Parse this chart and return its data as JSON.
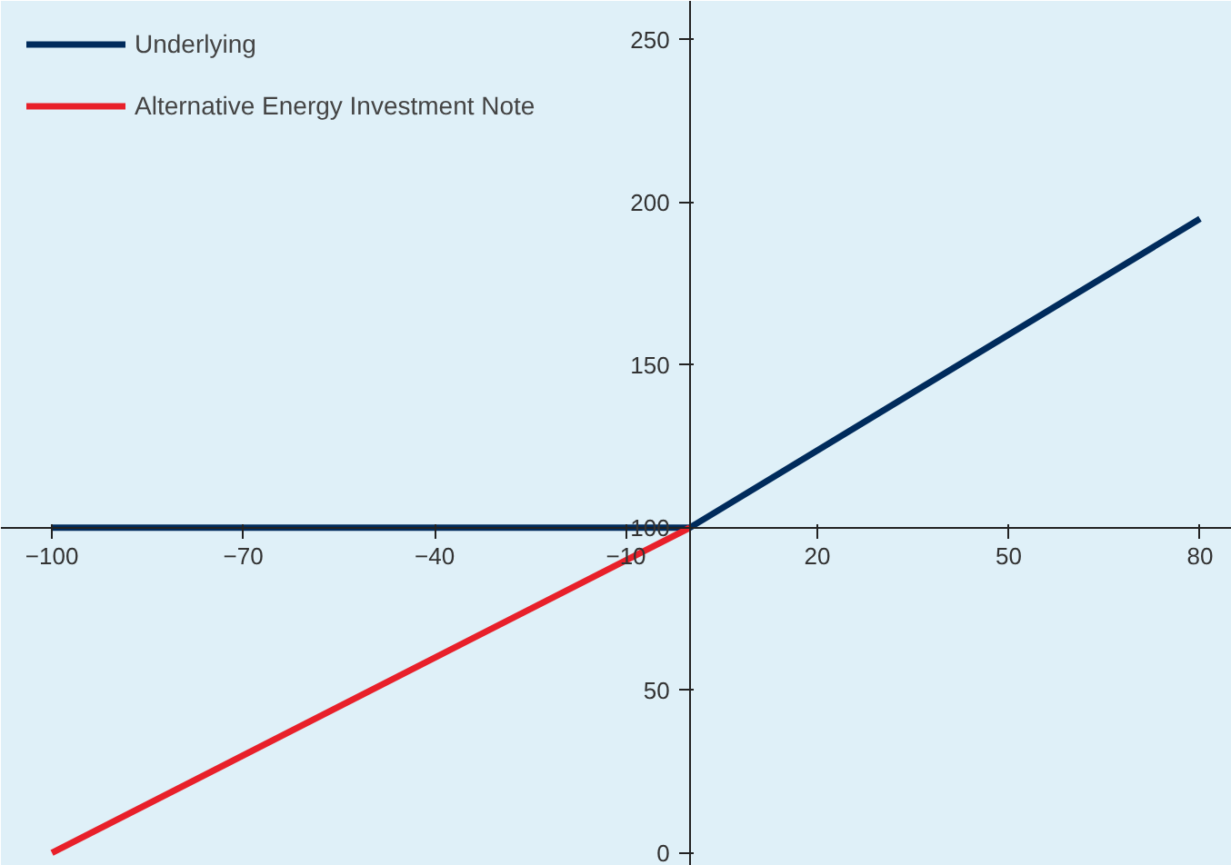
{
  "chart_data": {
    "type": "line",
    "series": [
      {
        "name": "Underlying",
        "color": "#002b5c",
        "x": [
          -100,
          0,
          80
        ],
        "values": [
          100,
          100,
          195
        ]
      },
      {
        "name": "Alternative Energy Investment Note",
        "color": "#e8202a",
        "x": [
          -100,
          0
        ],
        "values": [
          0,
          100
        ]
      }
    ],
    "xlim": [
      -108,
      85
    ],
    "xticks": [
      -100,
      -70,
      -40,
      -10,
      20,
      50,
      80
    ],
    "ylim": [
      -4,
      262
    ],
    "yticks": [
      0,
      50,
      100,
      150,
      200,
      250
    ],
    "grid": false,
    "legend": "top left",
    "marker": "none",
    "line_style": "solid"
  }
}
